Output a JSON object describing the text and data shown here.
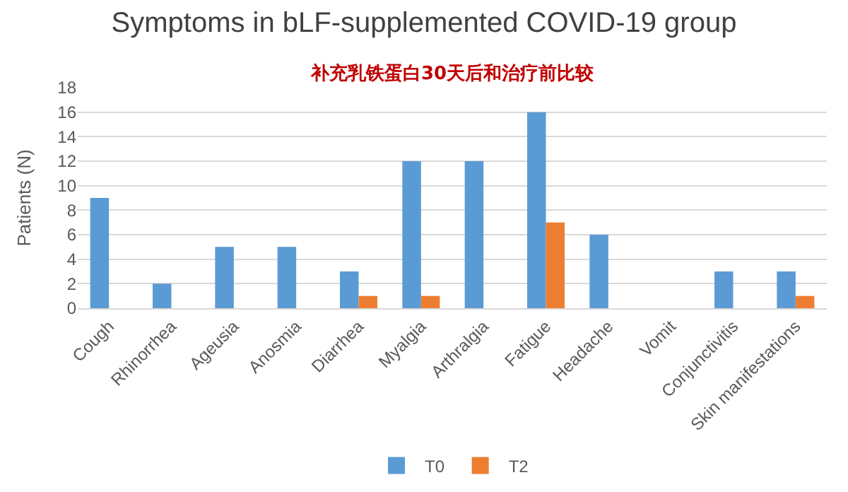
{
  "chart_data": {
    "type": "bar",
    "title": "Symptoms in bLF-supplemented COVID-19 group",
    "subtitle": "补充乳铁蛋白30天后和治疗前比较",
    "ylabel": "Patients (N)",
    "categories": [
      "Cough",
      "Rhinorrhea",
      "Ageusia",
      "Anosmia",
      "Diarrhea",
      "Myalgia",
      "Arthralgia",
      "Fatigue",
      "Headache",
      "Vomit",
      "Conjunctivitis",
      "Skin manifestations"
    ],
    "series": [
      {
        "name": "T0",
        "color": "#5b9bd5",
        "values": [
          9,
          2,
          5,
          5,
          3,
          12,
          12,
          16,
          6,
          0,
          3,
          3
        ]
      },
      {
        "name": "T2",
        "color": "#ed7d31",
        "values": [
          0,
          0,
          0,
          0,
          1,
          1,
          0,
          7,
          0,
          0,
          0,
          1
        ]
      }
    ],
    "ylim": [
      0,
      18
    ],
    "yticks": [
      0,
      2,
      4,
      6,
      8,
      10,
      12,
      14,
      16,
      18
    ],
    "grid": "y",
    "legend": "bottom"
  }
}
